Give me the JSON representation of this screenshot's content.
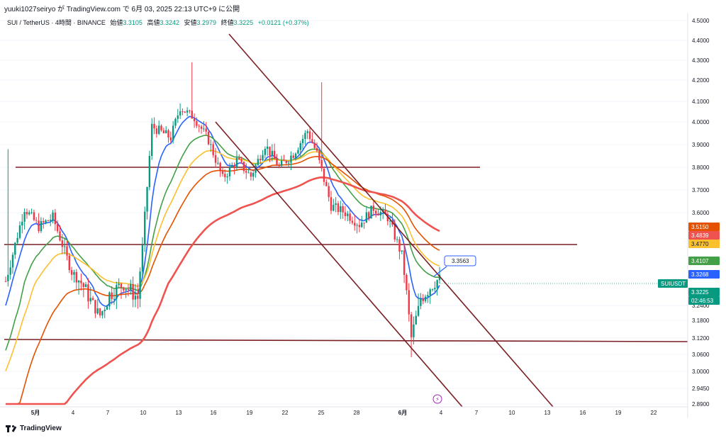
{
  "header": {
    "attribution": "yuuki1027seiryo が TradingView.com で 6月 03, 2025 22:13 UTC+9 に公開",
    "symbol": "SUI / TetherUS · 4時間 · BINANCE",
    "open_label": "始値",
    "open": "3.3105",
    "high_label": "高値",
    "high": "3.3242",
    "low_label": "安値",
    "low": "3.2979",
    "close_label": "終値",
    "close": "3.3225",
    "change": "+0.0121 (+0.37%)"
  },
  "footer": {
    "brand": "TradingView"
  },
  "colors": {
    "up": "#089981",
    "down": "#f23645",
    "trendline": "#7b1f24",
    "ma_blue": "#2962ff",
    "ma_green": "#43a047",
    "ma_yellow": "#fbc02d",
    "ma_orange": "#e65100",
    "ma_red": "#ef5350"
  },
  "chart_data": {
    "type": "candlestick",
    "pair": "SUIUSDT",
    "interval": "4時間",
    "y_ticks": [
      "4.5000",
      "4.4000",
      "4.3000",
      "4.2000",
      "4.1000",
      "4.0000",
      "3.9000",
      "3.8000",
      "3.7000",
      "3.6000",
      "3.2400",
      "3.1800",
      "3.1200",
      "3.0600",
      "3.0000",
      "2.9450",
      "2.8900"
    ],
    "x_ticks": [
      "5月",
      "4",
      "7",
      "10",
      "13",
      "16",
      "19",
      "22",
      "25",
      "28",
      "6月",
      "4",
      "7",
      "10",
      "13",
      "16",
      "19",
      "22"
    ],
    "price_badges": [
      {
        "label": "3.5150",
        "color": "#e65100"
      },
      {
        "label": "3.4839",
        "color": "#ef5350"
      },
      {
        "label": "3.4770",
        "color": "#fbc02d"
      },
      {
        "label": "3.4107",
        "color": "#43a047"
      },
      {
        "label": "3.3268",
        "color": "#2962ff"
      },
      {
        "label": "SUIUSDT",
        "color": "#089981"
      },
      {
        "label": "3.3225",
        "color": "#089981"
      },
      {
        "label": "02:46:53",
        "color": "#089981"
      }
    ],
    "callout": "3.3563",
    "horizontal_levels": [
      3.8,
      3.48,
      3.11
    ],
    "trend_channel": "descending",
    "moving_averages": [
      "blue",
      "green",
      "yellow",
      "orange",
      "red"
    ]
  }
}
